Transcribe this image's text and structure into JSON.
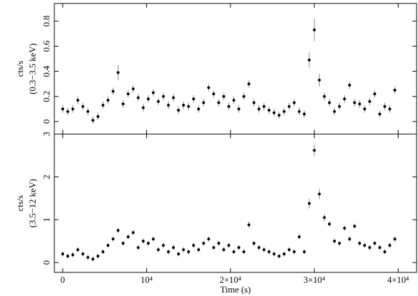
{
  "chart_data": [
    {
      "type": "scatter",
      "ylabel": [
        "cts/s",
        "(0.3−3.5 keV)"
      ],
      "x": [
        0,
        600,
        1200,
        1800,
        2400,
        3000,
        3600,
        4200,
        4800,
        5400,
        6000,
        6600,
        7200,
        7800,
        8400,
        9000,
        9600,
        10200,
        10800,
        11400,
        12000,
        12600,
        13200,
        13800,
        14400,
        15000,
        15600,
        16200,
        16800,
        17400,
        18000,
        18600,
        19200,
        19800,
        20400,
        21000,
        21600,
        22200,
        22800,
        23400,
        24000,
        24600,
        25200,
        25800,
        26400,
        27000,
        27600,
        28200,
        28800,
        29400,
        30000,
        30600,
        31200,
        31800,
        32400,
        33000,
        33600,
        34200,
        34800,
        35400,
        36000,
        36600,
        37200,
        37800,
        38400,
        39000,
        39600
      ],
      "series": [
        {
          "color": "#000000",
          "error_color": "#888888",
          "values": [
            0.1,
            0.08,
            0.1,
            0.17,
            0.12,
            0.08,
            0.01,
            0.04,
            0.13,
            0.17,
            0.24,
            0.39,
            0.14,
            0.22,
            0.26,
            0.19,
            0.11,
            0.18,
            0.23,
            0.16,
            0.2,
            0.13,
            0.19,
            0.09,
            0.13,
            0.12,
            0.18,
            0.1,
            0.15,
            0.27,
            0.22,
            0.15,
            0.2,
            0.12,
            0.17,
            0.1,
            0.2,
            0.3,
            0.15,
            0.1,
            0.12,
            0.09,
            0.07,
            0.05,
            0.08,
            0.12,
            0.15,
            0.08,
            0.06,
            0.49,
            0.73,
            0.33,
            0.2,
            0.15,
            0.08,
            0.12,
            0.18,
            0.29,
            0.15,
            0.14,
            0.1,
            0.16,
            0.22,
            0.06,
            0.12,
            0.1,
            0.25
          ],
          "errors": [
            0.03,
            0.03,
            0.03,
            0.03,
            0.03,
            0.03,
            0.03,
            0.03,
            0.03,
            0.03,
            0.03,
            0.06,
            0.03,
            0.03,
            0.03,
            0.03,
            0.03,
            0.03,
            0.03,
            0.03,
            0.03,
            0.03,
            0.03,
            0.03,
            0.03,
            0.03,
            0.03,
            0.03,
            0.03,
            0.03,
            0.03,
            0.03,
            0.03,
            0.03,
            0.03,
            0.03,
            0.03,
            0.03,
            0.03,
            0.03,
            0.03,
            0.03,
            0.03,
            0.03,
            0.03,
            0.03,
            0.03,
            0.03,
            0.03,
            0.06,
            0.09,
            0.05,
            0.03,
            0.03,
            0.03,
            0.03,
            0.03,
            0.03,
            0.03,
            0.03,
            0.03,
            0.03,
            0.03,
            0.03,
            0.03,
            0.03,
            0.03
          ]
        }
      ],
      "xlim": [
        -1000,
        42200
      ],
      "ylim": [
        -0.1,
        0.94
      ],
      "yticks": [
        0,
        0.2,
        0.4,
        0.6,
        0.8
      ]
    },
    {
      "type": "scatter",
      "ylabel": [
        "cts/s",
        "(3.5−12 keV)"
      ],
      "xlabel": "Time (s)",
      "x": [
        0,
        600,
        1200,
        1800,
        2400,
        3000,
        3600,
        4200,
        4800,
        5400,
        6000,
        6600,
        7200,
        7800,
        8400,
        9000,
        9600,
        10200,
        10800,
        11400,
        12000,
        12600,
        13200,
        13800,
        14400,
        15000,
        15600,
        16200,
        16800,
        17400,
        18000,
        18600,
        19200,
        19800,
        20400,
        21000,
        21600,
        22200,
        22800,
        23400,
        24000,
        24600,
        25200,
        25800,
        26400,
        27000,
        27600,
        28200,
        28800,
        29400,
        30000,
        30600,
        31200,
        31800,
        32400,
        33000,
        33600,
        34200,
        34800,
        35400,
        36000,
        36600,
        37200,
        37800,
        38400,
        39000,
        39600
      ],
      "series": [
        {
          "color": "#000000",
          "error_color": "#888888",
          "values": [
            0.2,
            0.15,
            0.18,
            0.3,
            0.2,
            0.12,
            0.08,
            0.15,
            0.25,
            0.4,
            0.55,
            0.75,
            0.45,
            0.6,
            0.7,
            0.35,
            0.5,
            0.45,
            0.55,
            0.3,
            0.4,
            0.25,
            0.35,
            0.2,
            0.3,
            0.25,
            0.4,
            0.3,
            0.45,
            0.55,
            0.35,
            0.45,
            0.3,
            0.4,
            0.25,
            0.35,
            0.25,
            0.88,
            0.45,
            0.35,
            0.3,
            0.25,
            0.2,
            0.15,
            0.2,
            0.3,
            0.25,
            0.6,
            0.25,
            1.38,
            2.62,
            1.6,
            1.05,
            0.9,
            0.5,
            0.45,
            0.8,
            0.55,
            0.85,
            0.45,
            0.4,
            0.35,
            0.45,
            0.35,
            0.25,
            0.4,
            0.55
          ],
          "errors": [
            0.06,
            0.06,
            0.06,
            0.06,
            0.06,
            0.06,
            0.06,
            0.06,
            0.06,
            0.06,
            0.06,
            0.06,
            0.06,
            0.06,
            0.06,
            0.06,
            0.06,
            0.06,
            0.06,
            0.06,
            0.06,
            0.06,
            0.06,
            0.06,
            0.06,
            0.06,
            0.06,
            0.06,
            0.06,
            0.06,
            0.06,
            0.06,
            0.06,
            0.06,
            0.06,
            0.06,
            0.06,
            0.08,
            0.06,
            0.06,
            0.06,
            0.06,
            0.06,
            0.06,
            0.06,
            0.06,
            0.06,
            0.06,
            0.06,
            0.12,
            0.14,
            0.12,
            0.08,
            0.06,
            0.06,
            0.06,
            0.06,
            0.06,
            0.06,
            0.06,
            0.06,
            0.06,
            0.06,
            0.06,
            0.06,
            0.06,
            0.06
          ]
        }
      ],
      "xlim": [
        -1000,
        42200
      ],
      "ylim": [
        -0.23,
        3
      ],
      "yticks": [
        0,
        1,
        2,
        3
      ],
      "xticks": [
        0,
        {
          "value": 10000,
          "label": "10⁴"
        },
        {
          "value": 20000,
          "label": "2×10⁴"
        },
        {
          "value": 30000,
          "label": "3×10⁴"
        },
        {
          "value": 40000,
          "label": "4×10⁴"
        }
      ]
    }
  ]
}
